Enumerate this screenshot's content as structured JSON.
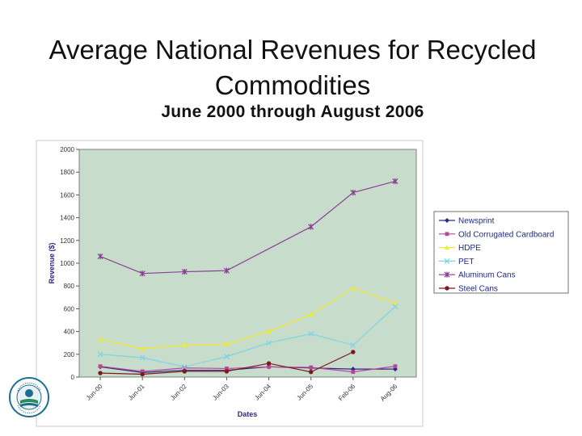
{
  "page": {
    "title": "Average National Revenues for Recycled Commodities",
    "subtitle": "June 2000 through August 2006"
  },
  "seal": {
    "text": "UNITED STATES ENVIRONMENTAL PROTECTION AGENCY",
    "icon": "epa-seal-icon"
  },
  "chart_data": {
    "type": "line",
    "xlabel": "Dates",
    "ylabel": "Revenue ($)",
    "categories": [
      "Jun-00",
      "Jun-01",
      "Jun-02",
      "Jun-03",
      "Jun-04",
      "Jun-05",
      "Feb-06",
      "Aug-06"
    ],
    "ylim": [
      0,
      2000
    ],
    "yticks": [
      0,
      200,
      400,
      600,
      800,
      1000,
      1200,
      1400,
      1600,
      1800,
      2000
    ],
    "grid": false,
    "legend_position": "right",
    "plot_background": "#c8dccb",
    "series": [
      {
        "name": "Newsprint",
        "color": "#2a2a80",
        "marker": "diamond",
        "values": [
          90,
          40,
          60,
          60,
          90,
          80,
          70,
          70
        ]
      },
      {
        "name": "Old Corrugated Cardboard",
        "color": "#b8479a",
        "marker": "square",
        "values": [
          95,
          50,
          80,
          75,
          90,
          85,
          45,
          95
        ]
      },
      {
        "name": "HDPE",
        "color": "#f2ea2a",
        "marker": "triangle",
        "values": [
          330,
          250,
          280,
          290,
          400,
          550,
          780,
          650
        ]
      },
      {
        "name": "PET",
        "color": "#7fd3e6",
        "marker": "x",
        "values": [
          200,
          170,
          90,
          180,
          300,
          380,
          280,
          620
        ]
      },
      {
        "name": "Aluminum Cans",
        "color": "#8a3e92",
        "marker": "star",
        "values": [
          1060,
          910,
          925,
          935,
          null,
          1320,
          1620,
          1720
        ]
      },
      {
        "name": "Steel Cans",
        "color": "#7a1a1a",
        "marker": "circle",
        "values": [
          35,
          25,
          50,
          50,
          120,
          45,
          220,
          null
        ]
      }
    ]
  }
}
